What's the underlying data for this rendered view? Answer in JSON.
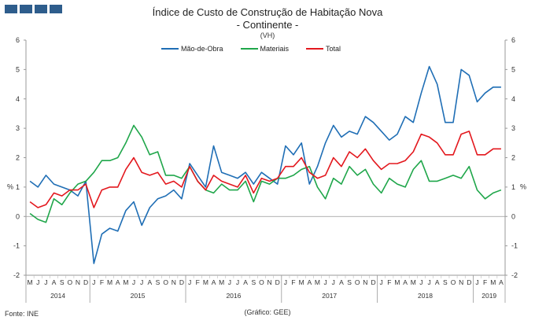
{
  "title": "Índice de Custo de Construção de Habitação Nova",
  "subtitle": "- Continente -",
  "unit": "(VH)",
  "source": "Fonte: INE",
  "credit": "(Gráfico: GEE)",
  "colors": {
    "mao_de_obra": "#1f6eb5",
    "materiais": "#1fa64a",
    "total": "#e3181e",
    "logo": "#2e5d8c"
  },
  "chart_data": {
    "type": "line",
    "ylabel_left": "%",
    "ylabel_right": "%",
    "ylim": [
      -2,
      6
    ],
    "yticks": [
      -2,
      -1,
      0,
      1,
      2,
      3,
      4,
      5,
      6
    ],
    "legend_position": "top",
    "grid": false,
    "x": [
      "M",
      "J",
      "J",
      "A",
      "S",
      "O",
      "N",
      "D",
      "J",
      "F",
      "M",
      "A",
      "M",
      "J",
      "J",
      "A",
      "S",
      "O",
      "N",
      "D",
      "J",
      "F",
      "M",
      "A",
      "M",
      "J",
      "J",
      "A",
      "S",
      "O",
      "N",
      "D",
      "J",
      "F",
      "M",
      "A",
      "M",
      "J",
      "J",
      "A",
      "S",
      "O",
      "N",
      "D",
      "J",
      "F",
      "M",
      "A",
      "M",
      "J",
      "J",
      "A",
      "S",
      "O",
      "N",
      "D",
      "J",
      "F",
      "M",
      "A"
    ],
    "years": [
      {
        "label": "2014",
        "start": 0,
        "end": 7
      },
      {
        "label": "2015",
        "start": 8,
        "end": 19
      },
      {
        "label": "2016",
        "start": 20,
        "end": 31
      },
      {
        "label": "2017",
        "start": 32,
        "end": 43
      },
      {
        "label": "2018",
        "start": 44,
        "end": 55
      },
      {
        "label": "2019",
        "start": 56,
        "end": 59
      }
    ],
    "series": [
      {
        "name": "Mão-de-Obra",
        "key": "mao_de_obra",
        "values": [
          1.2,
          1.0,
          1.4,
          1.1,
          1.0,
          0.9,
          0.7,
          1.2,
          -1.6,
          -0.6,
          -0.4,
          -0.5,
          0.2,
          0.5,
          -0.3,
          0.3,
          0.6,
          0.7,
          0.9,
          0.6,
          1.8,
          1.4,
          1.0,
          2.4,
          1.5,
          1.4,
          1.3,
          1.5,
          1.1,
          1.5,
          1.3,
          1.1,
          2.4,
          2.1,
          2.5,
          1.1,
          1.7,
          2.5,
          3.1,
          2.7,
          2.9,
          2.8,
          3.4,
          3.2,
          2.9,
          2.6,
          2.8,
          3.4,
          3.2,
          4.2,
          5.1,
          4.5,
          3.2,
          3.2,
          5.0,
          4.8,
          3.9,
          4.2,
          4.4,
          4.4
        ]
      },
      {
        "name": "Materiais",
        "key": "materiais",
        "values": [
          0.1,
          -0.1,
          -0.2,
          0.6,
          0.4,
          0.8,
          1.1,
          1.2,
          1.5,
          1.9,
          1.9,
          2.0,
          2.5,
          3.1,
          2.7,
          2.1,
          2.2,
          1.4,
          1.4,
          1.3,
          1.7,
          1.2,
          0.9,
          0.8,
          1.1,
          0.9,
          0.9,
          1.2,
          0.5,
          1.2,
          1.1,
          1.3,
          1.3,
          1.4,
          1.6,
          1.7,
          1.0,
          0.6,
          1.3,
          1.1,
          1.7,
          1.4,
          1.6,
          1.1,
          0.8,
          1.3,
          1.1,
          1.0,
          1.6,
          1.9,
          1.2,
          1.2,
          1.3,
          1.4,
          1.3,
          1.7,
          0.9,
          0.6,
          0.8,
          0.9
        ]
      },
      {
        "name": "Total",
        "key": "total",
        "values": [
          0.5,
          0.3,
          0.4,
          0.8,
          0.7,
          0.9,
          0.9,
          1.1,
          0.3,
          0.9,
          1.0,
          1.0,
          1.6,
          2.0,
          1.5,
          1.4,
          1.5,
          1.1,
          1.2,
          1.0,
          1.7,
          1.2,
          0.9,
          1.4,
          1.2,
          1.1,
          1.0,
          1.4,
          0.8,
          1.3,
          1.2,
          1.3,
          1.7,
          1.7,
          2.0,
          1.5,
          1.3,
          1.4,
          2.0,
          1.7,
          2.2,
          2.0,
          2.3,
          1.9,
          1.6,
          1.8,
          1.8,
          1.9,
          2.2,
          2.8,
          2.7,
          2.5,
          2.1,
          2.1,
          2.8,
          2.9,
          2.1,
          2.1,
          2.3,
          2.3
        ]
      }
    ]
  }
}
